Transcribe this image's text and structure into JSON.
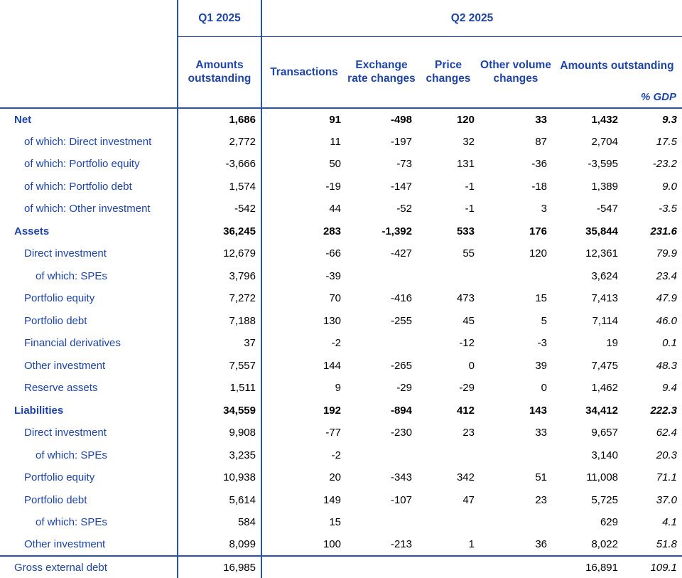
{
  "colors": {
    "text_blue": "#1e44a9",
    "border_blue": "#2553ae",
    "number_black": "#000000"
  },
  "table": {
    "header": {
      "q1_label": "Q1 2025",
      "q2_label": "Q2 2025",
      "q1_col": "Amounts outstanding",
      "q2_cols": [
        "Transactions",
        "Exchange rate changes",
        "Price changes",
        "Other volume changes"
      ],
      "q2_amounts": "Amounts outstanding",
      "gdp_label": "% GDP"
    },
    "rows": [
      {
        "label": "Net",
        "indent": 0,
        "bold": true,
        "separator": false,
        "cells": [
          "1,686",
          "91",
          "-498",
          "120",
          "33",
          "1,432",
          "9.3"
        ]
      },
      {
        "label": "of which: Direct investment",
        "indent": 1,
        "bold": false,
        "separator": false,
        "cells": [
          "2,772",
          "11",
          "-197",
          "32",
          "87",
          "2,704",
          "17.5"
        ]
      },
      {
        "label": "of which: Portfolio equity",
        "indent": 1,
        "bold": false,
        "separator": false,
        "cells": [
          "-3,666",
          "50",
          "-73",
          "131",
          "-36",
          "-3,595",
          "-23.2"
        ]
      },
      {
        "label": "of which: Portfolio debt",
        "indent": 1,
        "bold": false,
        "separator": false,
        "cells": [
          "1,574",
          "-19",
          "-147",
          "-1",
          "-18",
          "1,389",
          "9.0"
        ]
      },
      {
        "label": "of which: Other investment",
        "indent": 1,
        "bold": false,
        "separator": false,
        "cells": [
          "-542",
          "44",
          "-52",
          "-1",
          "3",
          "-547",
          "-3.5"
        ]
      },
      {
        "label": "Assets",
        "indent": 0,
        "bold": true,
        "separator": false,
        "cells": [
          "36,245",
          "283",
          "-1,392",
          "533",
          "176",
          "35,844",
          "231.6"
        ]
      },
      {
        "label": "Direct investment",
        "indent": 1,
        "bold": false,
        "separator": false,
        "cells": [
          "12,679",
          "-66",
          "-427",
          "55",
          "120",
          "12,361",
          "79.9"
        ]
      },
      {
        "label": "of which: SPEs",
        "indent": 2,
        "bold": false,
        "separator": false,
        "cells": [
          "3,796",
          "-39",
          "",
          "",
          "",
          "3,624",
          "23.4"
        ]
      },
      {
        "label": "Portfolio equity",
        "indent": 1,
        "bold": false,
        "separator": false,
        "cells": [
          "7,272",
          "70",
          "-416",
          "473",
          "15",
          "7,413",
          "47.9"
        ]
      },
      {
        "label": "Portfolio debt",
        "indent": 1,
        "bold": false,
        "separator": false,
        "cells": [
          "7,188",
          "130",
          "-255",
          "45",
          "5",
          "7,114",
          "46.0"
        ]
      },
      {
        "label": "Financial derivatives",
        "indent": 1,
        "bold": false,
        "separator": false,
        "cells": [
          "37",
          "-2",
          "",
          "-12",
          "-3",
          "19",
          "0.1"
        ]
      },
      {
        "label": "Other investment",
        "indent": 1,
        "bold": false,
        "separator": false,
        "cells": [
          "7,557",
          "144",
          "-265",
          "0",
          "39",
          "7,475",
          "48.3"
        ]
      },
      {
        "label": "Reserve assets",
        "indent": 1,
        "bold": false,
        "separator": false,
        "cells": [
          "1,511",
          "9",
          "-29",
          "-29",
          "0",
          "1,462",
          "9.4"
        ]
      },
      {
        "label": "Liabilities",
        "indent": 0,
        "bold": true,
        "separator": false,
        "cells": [
          "34,559",
          "192",
          "-894",
          "412",
          "143",
          "34,412",
          "222.3"
        ]
      },
      {
        "label": "Direct investment",
        "indent": 1,
        "bold": false,
        "separator": false,
        "cells": [
          "9,908",
          "-77",
          "-230",
          "23",
          "33",
          "9,657",
          "62.4"
        ]
      },
      {
        "label": "of which: SPEs",
        "indent": 2,
        "bold": false,
        "separator": false,
        "cells": [
          "3,235",
          "-2",
          "",
          "",
          "",
          "3,140",
          "20.3"
        ]
      },
      {
        "label": "Portfolio equity",
        "indent": 1,
        "bold": false,
        "separator": false,
        "cells": [
          "10,938",
          "20",
          "-343",
          "342",
          "51",
          "11,008",
          "71.1"
        ]
      },
      {
        "label": "Portfolio debt",
        "indent": 1,
        "bold": false,
        "separator": false,
        "cells": [
          "5,614",
          "149",
          "-107",
          "47",
          "23",
          "5,725",
          "37.0"
        ]
      },
      {
        "label": "of which: SPEs",
        "indent": 2,
        "bold": false,
        "separator": false,
        "cells": [
          "584",
          "15",
          "",
          "",
          "",
          "629",
          "4.1"
        ]
      },
      {
        "label": "Other investment",
        "indent": 1,
        "bold": false,
        "separator": false,
        "cells": [
          "8,099",
          "100",
          "-213",
          "1",
          "36",
          "8,022",
          "51.8"
        ]
      },
      {
        "label": "Gross external debt",
        "indent": 0,
        "bold": false,
        "separator": true,
        "cells": [
          "16,985",
          "",
          "",
          "",
          "",
          "16,891",
          "109.1"
        ]
      }
    ]
  }
}
